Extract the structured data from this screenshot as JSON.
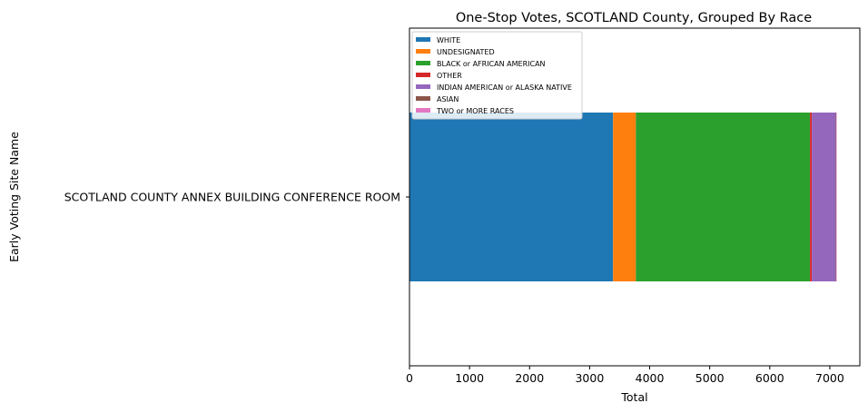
{
  "chart_data": {
    "type": "bar",
    "orientation": "horizontal",
    "stacked": true,
    "title": "One-Stop Votes, SCOTLAND County, Grouped By Race",
    "xlabel": "Total",
    "ylabel": "Early Voting Site Name",
    "categories": [
      "SCOTLAND COUNTY ANNEX BUILDING CONFERENCE ROOM"
    ],
    "xlim": [
      0,
      7500
    ],
    "xticks": [
      0,
      1000,
      2000,
      3000,
      4000,
      5000,
      6000,
      7000
    ],
    "grid": false,
    "legend_position": "top-left",
    "series": [
      {
        "name": "WHITE",
        "values": [
          3390
        ],
        "color": "#1f77b4"
      },
      {
        "name": "UNDESIGNATED",
        "values": [
          380
        ],
        "color": "#ff7f0e"
      },
      {
        "name": "BLACK or AFRICAN AMERICAN",
        "values": [
          2900
        ],
        "color": "#2ca02c"
      },
      {
        "name": "OTHER",
        "values": [
          30
        ],
        "color": "#d62728"
      },
      {
        "name": "INDIAN AMERICAN or ALASKA NATIVE",
        "values": [
          400
        ],
        "color": "#9467bd"
      },
      {
        "name": "ASIAN",
        "values": [
          10
        ],
        "color": "#8c564b"
      },
      {
        "name": "TWO or MORE RACES",
        "values": [
          5
        ],
        "color": "#e377c2"
      }
    ]
  }
}
